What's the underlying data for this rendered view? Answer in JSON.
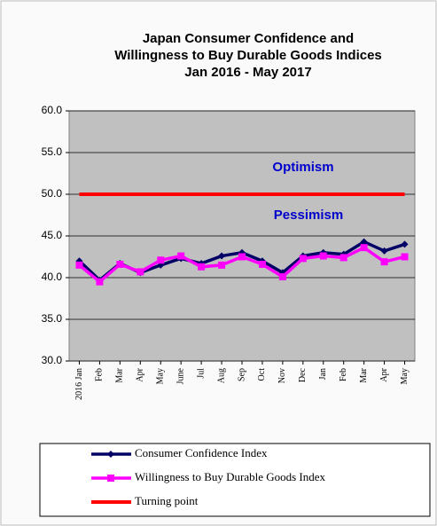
{
  "chart_data": {
    "type": "line",
    "title": [
      "Japan Consumer Confidence and",
      "Willingness to Buy Durable Goods Indices",
      "Jan 2016 - May 2017"
    ],
    "categories": [
      "2016 Jan",
      "Feb",
      "Mar",
      "Apr",
      "May",
      "June",
      "Jul",
      "Aug",
      "Sep",
      "Oct",
      "Nov",
      "Dec",
      "Jan",
      "Feb",
      "Mar",
      "Apr",
      "May"
    ],
    "series": [
      {
        "name": "Consumer Confidence Index",
        "color": "#000066",
        "marker": "diamond",
        "values": [
          42.0,
          39.7,
          41.7,
          40.6,
          41.5,
          42.3,
          41.7,
          42.6,
          43.0,
          42.0,
          40.6,
          42.6,
          43.0,
          42.8,
          44.3,
          43.2,
          44.0
        ]
      },
      {
        "name": "Willingness to Buy Durable Goods Index",
        "color": "#ff00ff",
        "marker": "square",
        "values": [
          41.5,
          39.5,
          41.6,
          40.7,
          42.1,
          42.6,
          41.3,
          41.5,
          42.5,
          41.6,
          40.1,
          42.3,
          42.6,
          42.4,
          43.6,
          41.9,
          42.5
        ]
      },
      {
        "name": "Turning point",
        "color": "#ff0000",
        "marker": "none",
        "values": [
          50,
          50,
          50,
          50,
          50,
          50,
          50,
          50,
          50,
          50,
          50,
          50,
          50,
          50,
          50,
          50,
          50
        ]
      }
    ],
    "annotations": [
      "Optimism",
      "Pessimism"
    ],
    "ylim": [
      30,
      60
    ],
    "yticks": [
      {
        "value": 30,
        "label": "30.0"
      },
      {
        "value": 35,
        "label": "35.0"
      },
      {
        "value": 40,
        "label": "40.0"
      },
      {
        "value": 45,
        "label": "45.0"
      },
      {
        "value": 50,
        "label": "50.0"
      },
      {
        "value": 55,
        "label": "55.0"
      },
      {
        "value": 60,
        "label": "60.0"
      }
    ],
    "grid": true
  }
}
